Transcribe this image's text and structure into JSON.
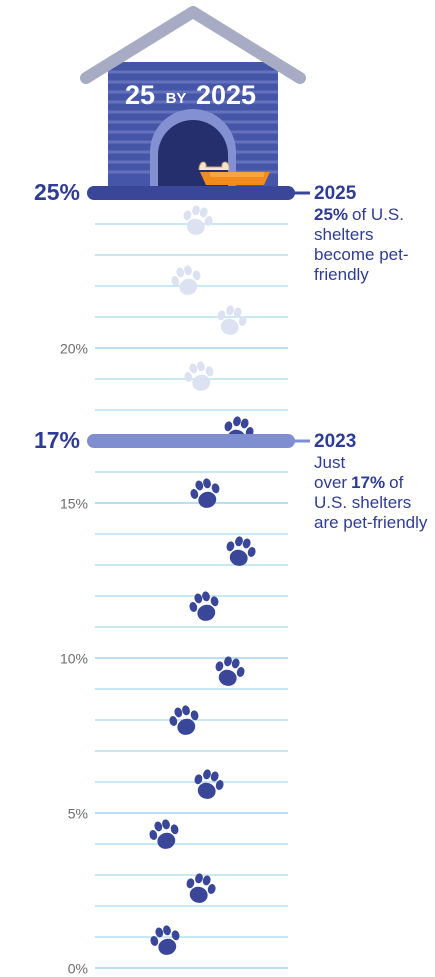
{
  "chart_data": {
    "type": "scale",
    "title": {
      "left": "25",
      "middle": "BY",
      "right": "2025"
    },
    "ylim": [
      0,
      25
    ],
    "yticks": [
      {
        "value": 0,
        "label": "0%"
      },
      {
        "value": 5,
        "label": "5%"
      },
      {
        "value": 10,
        "label": "10%"
      },
      {
        "value": 15,
        "label": "15%"
      },
      {
        "value": 20,
        "label": "20%"
      }
    ],
    "gridlines": [
      0,
      1,
      2,
      3,
      4,
      5,
      6,
      7,
      8,
      9,
      10,
      11,
      12,
      13,
      14,
      15,
      16,
      17,
      18,
      19,
      20,
      21,
      22,
      23,
      24,
      25
    ],
    "grid_color": "#a9d9ef",
    "markers": [
      {
        "value": 17,
        "label": "17%",
        "year": "2023",
        "color": "#7f8ed0",
        "note": [
          {
            "text": "Just over",
            "bold": false
          },
          {
            "text": "17%",
            "bold": true
          },
          {
            "text": "of U.S. shelters are pet-friendly",
            "bold": false
          }
        ]
      },
      {
        "value": 25,
        "label": "25%",
        "year": "2025",
        "color": "#3a4799",
        "note": [
          {
            "text": "25%",
            "bold": true
          },
          {
            "text": "of U.S. shelters become pet-friendly",
            "bold": false
          }
        ]
      }
    ]
  }
}
